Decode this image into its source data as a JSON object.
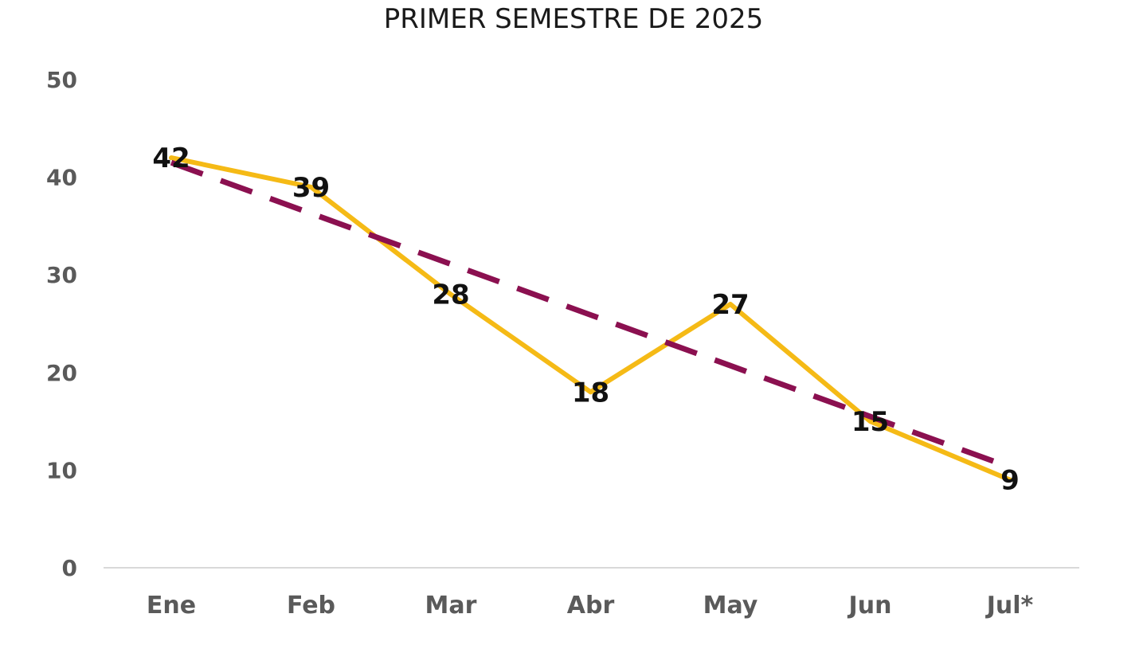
{
  "chart_data": {
    "type": "line",
    "title": "",
    "subtitle": "PRIMER SEMESTRE DE 2025",
    "xlabel": "",
    "ylabel": "",
    "categories": [
      "Ene",
      "Feb",
      "Mar",
      "Abr",
      "May",
      "Jun",
      "Jul*"
    ],
    "ylim": [
      0,
      50
    ],
    "yticks": [
      0,
      10,
      20,
      30,
      40,
      50
    ],
    "series": [
      {
        "color": "#F5BA16",
        "style": "solid",
        "values": [
          42,
          39,
          28,
          18,
          27,
          15,
          9
        ],
        "data_labels": [
          "42",
          "39",
          "28",
          "18",
          "27",
          "15",
          "9"
        ]
      },
      {
        "color": "#8B1050",
        "style": "dashed",
        "trendline": true,
        "values": [
          41.5,
          36.3,
          31.1,
          25.9,
          20.7,
          15.5,
          10.3
        ]
      }
    ],
    "grid": false,
    "legend": "none"
  }
}
